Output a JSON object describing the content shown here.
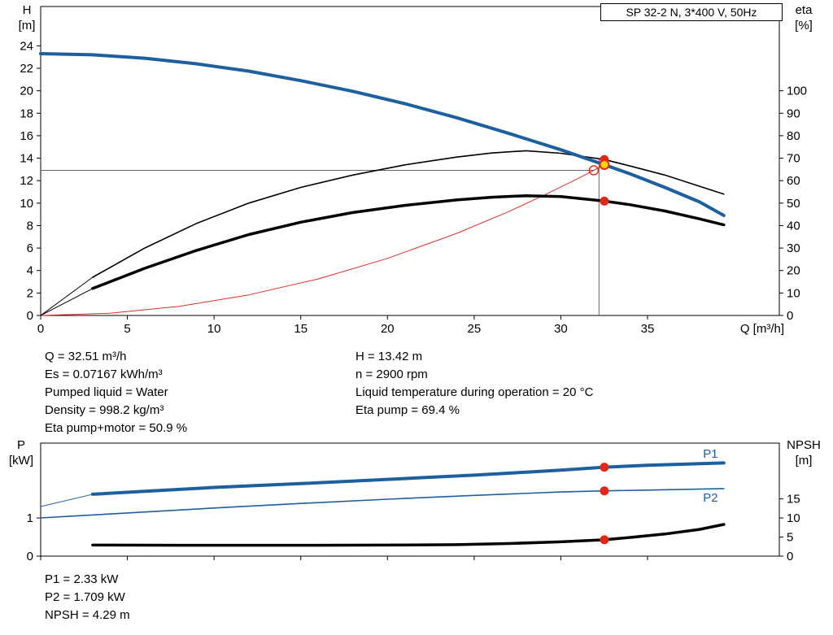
{
  "results_top": {
    "left": [
      "Q = 32.51 m³/h",
      "Es = 0.07167 kWh/m³",
      "Pumped liquid = Water",
      "Density = 998.2 kg/m³",
      "Eta pump+motor = 50.9 %"
    ],
    "right": [
      "H = 13.42 m",
      "n = 2900 rpm",
      "Liquid temperature during operation = 20 °C",
      "Eta pump = 69.4 %"
    ]
  },
  "results_bottom": [
    "P1 = 2.33 kW",
    "P2 = 1.709 kW",
    "NPSH = 4.29 m"
  ],
  "chart_data": [
    {
      "id": "hq-chart",
      "type": "line",
      "title": "SP 32-2 N, 3*400 V, 50Hz",
      "xlabel": "Q [m³/h]",
      "axis_labels": {
        "left": [
          "H",
          "[m]"
        ],
        "right": [
          "eta",
          "[%]"
        ]
      },
      "xlim": [
        0,
        42.6
      ],
      "ylim_left": [
        0,
        27.5
      ],
      "right_axis_scale": 5,
      "x_ticks": [
        0,
        5,
        10,
        15,
        20,
        25,
        30,
        35
      ],
      "show_x_tick_labels": true,
      "y_ticks_left": [
        0,
        2,
        4,
        6,
        8,
        10,
        12,
        14,
        16,
        18,
        20,
        22,
        24
      ],
      "y_ticks_right": [
        0,
        10,
        20,
        30,
        40,
        50,
        60,
        70,
        80,
        90,
        100
      ],
      "grid": false,
      "legend_position": "none",
      "series": [
        {
          "name": "system-curve",
          "color": "#d93025",
          "width": 1,
          "axis": "left",
          "points": [
            [
              0,
              0
            ],
            [
              4,
              0.2
            ],
            [
              8,
              0.81
            ],
            [
              12,
              1.83
            ],
            [
              16,
              3.25
            ],
            [
              20,
              5.08
            ],
            [
              24,
              7.31
            ],
            [
              27,
              9.25
            ],
            [
              29,
              10.68
            ],
            [
              31,
              12.2
            ],
            [
              31.9,
              12.92
            ],
            [
              32.51,
              13.42
            ]
          ]
        },
        {
          "name": "eta-pump-curve",
          "color": "#000000",
          "width": 1.6,
          "axis": "right",
          "lead": [
            0,
            0
          ],
          "points": [
            [
              3,
              17
            ],
            [
              6,
              30
            ],
            [
              9,
              41
            ],
            [
              12,
              50
            ],
            [
              15,
              57
            ],
            [
              18,
              62.5
            ],
            [
              21,
              67
            ],
            [
              24,
              70.5
            ],
            [
              26,
              72.3
            ],
            [
              28,
              73.3
            ],
            [
              30,
              72.2
            ],
            [
              32.51,
              69.4
            ],
            [
              34,
              66.5
            ],
            [
              36,
              62.5
            ],
            [
              38,
              57.5
            ],
            [
              39.4,
              54
            ]
          ]
        },
        {
          "name": "eta-pump-motor-curve",
          "color": "#000000",
          "width": 3.5,
          "axis": "right",
          "lead": [
            0,
            0
          ],
          "points": [
            [
              3,
              12
            ],
            [
              6,
              21
            ],
            [
              9,
              29
            ],
            [
              12,
              36
            ],
            [
              15,
              41.5
            ],
            [
              18,
              45.8
            ],
            [
              21,
              49
            ],
            [
              24,
              51.4
            ],
            [
              26,
              52.6
            ],
            [
              28,
              53.3
            ],
            [
              30,
              52.9
            ],
            [
              32.51,
              50.9
            ],
            [
              34,
              49.3
            ],
            [
              36,
              46.5
            ],
            [
              38,
              43
            ],
            [
              39.4,
              40.3
            ]
          ]
        },
        {
          "name": "pump-curve",
          "color": "#1e5f9e",
          "width": 4,
          "axis": "left",
          "points": [
            [
              0,
              23.3
            ],
            [
              3,
              23.2
            ],
            [
              6,
              22.9
            ],
            [
              9,
              22.4
            ],
            [
              12,
              21.75
            ],
            [
              15,
              20.9
            ],
            [
              18,
              19.95
            ],
            [
              21,
              18.85
            ],
            [
              24,
              17.6
            ],
            [
              27,
              16.2
            ],
            [
              30,
              14.75
            ],
            [
              32.51,
              13.42
            ],
            [
              34,
              12.6
            ],
            [
              36,
              11.4
            ],
            [
              38,
              10.1
            ],
            [
              39.4,
              8.9
            ]
          ]
        }
      ],
      "crosshair": [
        {
          "type": "h",
          "v": 12.92,
          "from": 0,
          "to": 31.9
        },
        {
          "type": "v",
          "q": 32.2,
          "from": 0,
          "to": 13.9
        }
      ],
      "markers": [
        {
          "name": "eta-pump-marker",
          "q": 32.51,
          "v": 69.4,
          "axis": "right",
          "style": "dot"
        },
        {
          "name": "duty-point-marker",
          "q": 32.51,
          "v": 13.42,
          "axis": "left",
          "style": "duty"
        },
        {
          "name": "requested-point-marker",
          "q": 31.9,
          "v": 12.92,
          "axis": "left",
          "style": "open"
        },
        {
          "name": "eta-motor-marker",
          "q": 32.51,
          "v": 50.9,
          "axis": "right",
          "style": "dot"
        }
      ],
      "labels": [],
      "colors": {
        "marker": "#e22718",
        "duty_fill": "#ffd400",
        "crosshair": "#666666"
      }
    },
    {
      "id": "power-chart",
      "type": "line",
      "title": "",
      "xlabel": "",
      "axis_labels": {
        "left": [
          "P",
          "[kW]"
        ],
        "right": [
          "NPSH",
          "[m]"
        ]
      },
      "xlim": [
        0,
        42.6
      ],
      "ylim_left": [
        0,
        2.96
      ],
      "right_axis_scale": 10,
      "x_ticks": [
        0,
        5,
        10,
        15,
        20,
        25,
        30,
        35
      ],
      "show_x_tick_labels": false,
      "y_ticks_left": [
        0,
        1
      ],
      "y_ticks_right": [
        0,
        5,
        10,
        15
      ],
      "grid": false,
      "legend_position": "inline-right",
      "series": [
        {
          "name": "p2-curve",
          "color": "#1e5f9e",
          "width": 1.6,
          "axis": "left",
          "points": [
            [
              0,
              1.0
            ],
            [
              5,
              1.13
            ],
            [
              10,
              1.26
            ],
            [
              15,
              1.38
            ],
            [
              20,
              1.49
            ],
            [
              25,
              1.59
            ],
            [
              30,
              1.68
            ],
            [
              32.51,
              1.709
            ],
            [
              35,
              1.73
            ],
            [
              39.4,
              1.77
            ]
          ]
        },
        {
          "name": "p1-curve",
          "color": "#1e5f9e",
          "width": 4,
          "axis": "left",
          "lead": [
            0,
            1.3
          ],
          "points": [
            [
              3,
              1.62
            ],
            [
              6,
              1.7
            ],
            [
              10,
              1.8
            ],
            [
              15,
              1.9
            ],
            [
              20,
              2.01
            ],
            [
              25,
              2.12
            ],
            [
              28,
              2.2
            ],
            [
              30,
              2.25
            ],
            [
              32.51,
              2.33
            ],
            [
              35,
              2.38
            ],
            [
              39.4,
              2.44
            ]
          ]
        },
        {
          "name": "npsh-curve",
          "color": "#000000",
          "width": 3.5,
          "axis": "right",
          "points": [
            [
              3,
              2.9
            ],
            [
              8,
              2.85
            ],
            [
              12,
              2.85
            ],
            [
              16,
              2.85
            ],
            [
              20,
              2.9
            ],
            [
              24,
              3.0
            ],
            [
              27,
              3.3
            ],
            [
              30,
              3.75
            ],
            [
              32.51,
              4.29
            ],
            [
              34,
              4.9
            ],
            [
              36,
              5.8
            ],
            [
              38,
              7.0
            ],
            [
              39.4,
              8.3
            ]
          ]
        }
      ],
      "crosshair": [],
      "markers": [
        {
          "name": "p1-marker",
          "q": 32.51,
          "v": 2.33,
          "axis": "left",
          "style": "dot"
        },
        {
          "name": "p2-marker",
          "q": 32.51,
          "v": 1.709,
          "axis": "left",
          "style": "dot"
        },
        {
          "name": "npsh-marker",
          "q": 32.51,
          "v": 4.29,
          "axis": "right",
          "style": "dot"
        }
      ],
      "labels": [
        {
          "text": "P1",
          "q": 38.2,
          "v": 2.58,
          "color": "#1e5f9e"
        },
        {
          "text": "P2",
          "q": 38.2,
          "v": 1.43,
          "color": "#1e5f9e"
        }
      ],
      "colors": {
        "marker": "#e22718",
        "duty_fill": "#ffd400",
        "crosshair": "#666666"
      }
    }
  ]
}
